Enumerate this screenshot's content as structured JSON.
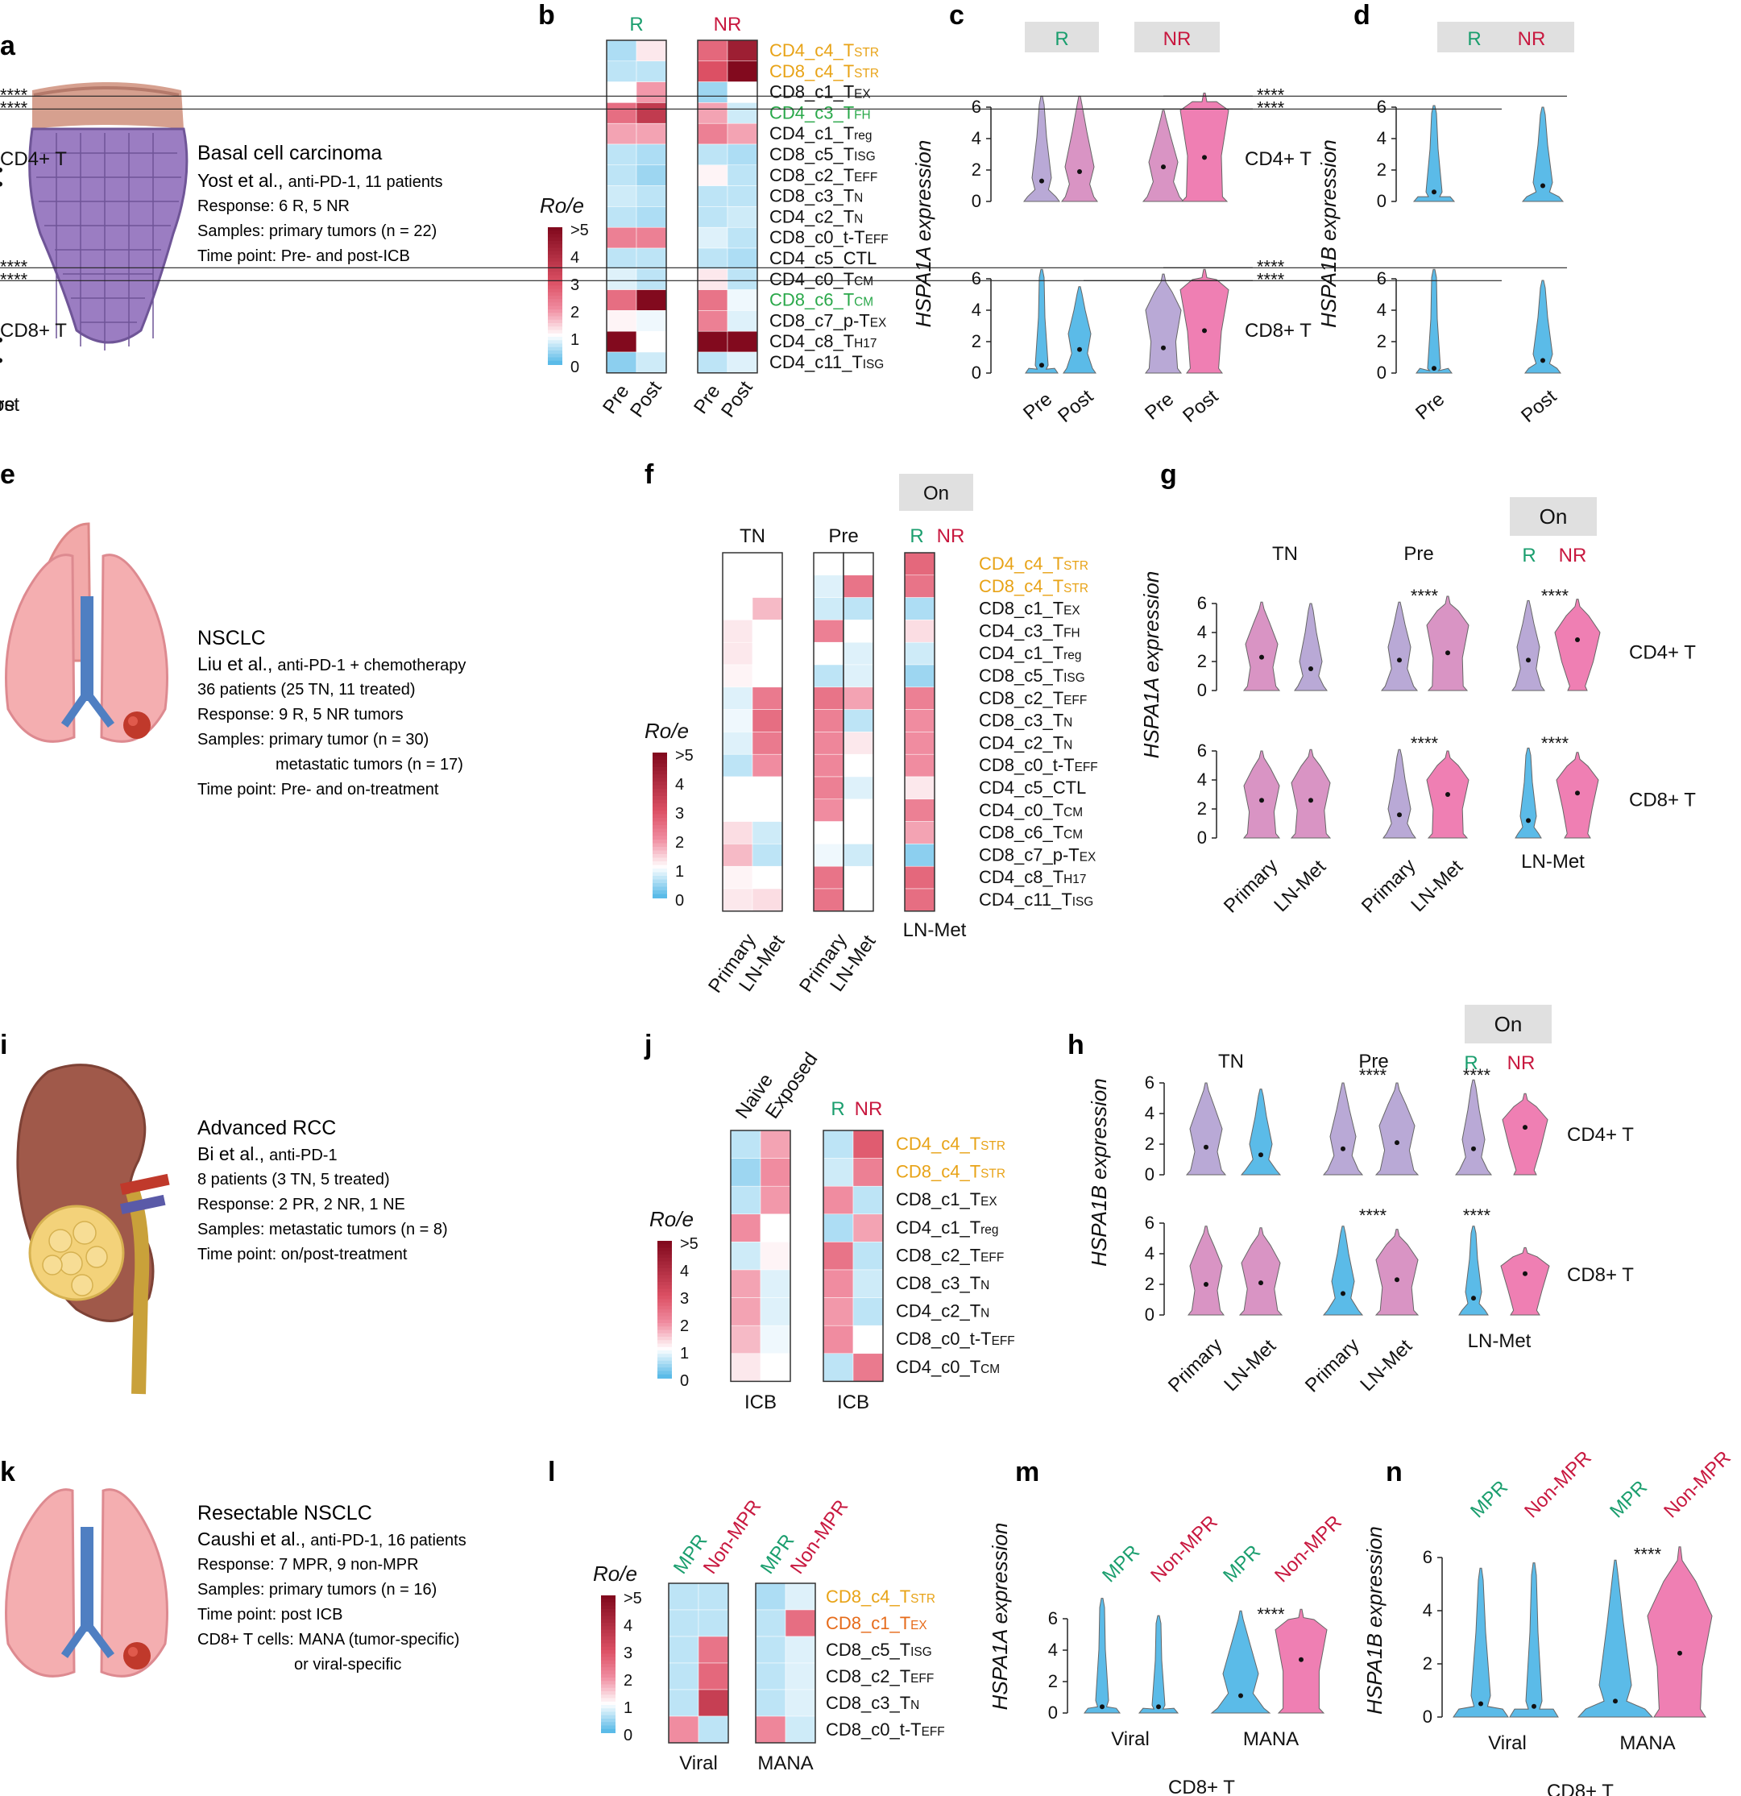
{
  "colors": {
    "r_green": "#1a9e6e",
    "nr_red": "#c8183f",
    "tstr_orange": "#e8a317",
    "tex_orange": "#e66b1a",
    "tfh_green": "#2aa84a",
    "violin_purple": "#b9a9d6",
    "violin_blue": "#5bbbe8",
    "violin_pink": "#ef7fb3",
    "violin_mauve": "#d994c4",
    "box_grey": "#e0e0e0"
  },
  "panels": {
    "a": {
      "letter": "a",
      "title": "Basal cell carcinoma",
      "study": "Yost et al.,",
      "study_detail": "anti-PD-1, 11 patients",
      "lines": [
        "Response: 6 R, 5 NR",
        "Samples: primary tumors (n = 22)",
        "Time point: Pre- and post-ICB"
      ]
    },
    "b": {
      "letter": "b",
      "groups": [
        "R",
        "NR"
      ],
      "x_labels": [
        "Pre",
        "Post",
        "Pre",
        "Post"
      ],
      "rows": [
        "CD4_c4_TSTR",
        "CD8_c4_TSTR",
        "CD8_c1_TEX",
        "CD4_c3_TFH",
        "CD4_c1_Treg",
        "CD8_c5_TISG",
        "CD8_c2_TEFF",
        "CD8_c3_TN",
        "CD4_c2_TN",
        "CD8_c0_t-TEFF",
        "CD4_c5_CTL",
        "CD4_c0_TCM",
        "CD8_c6_TCM",
        "CD8_c7_p-TEX",
        "CD4_c8_TH17",
        "CD4_c11_TISG"
      ]
    },
    "c": {
      "letter": "c",
      "groups": [
        "R",
        "NR"
      ],
      "ylabel": "HSPA1A expression",
      "x_labels": [
        "Pre",
        "Post",
        "Pre",
        "Post"
      ],
      "rows": [
        "CD4+ T",
        "CD8+ T"
      ],
      "sig": "****",
      "ticks": [
        "0",
        "2",
        "4",
        "6"
      ]
    },
    "d": {
      "letter": "d",
      "groups": [
        "R",
        "NR"
      ],
      "ylabel": "HSPA1B expression",
      "x_labels": [
        "Pre",
        "Post",
        "Pre",
        "Post"
      ],
      "rows": [
        "CD4+ T",
        "CD8+ T"
      ],
      "sig": "****",
      "ticks": [
        "0",
        "2",
        "4",
        "6"
      ]
    },
    "e": {
      "letter": "e",
      "title": "NSCLC",
      "study": "Liu et al.,",
      "study_detail": "anti-PD-1 + chemotherapy",
      "lines": [
        "36 patients (25 TN, 11 treated)",
        "Response: 9 R, 5 NR tumors",
        "Samples: primary tumor (n = 30)",
        "metastatic tumors (n = 17)",
        "Time point: Pre- and on-treatment"
      ]
    },
    "f": {
      "letter": "f",
      "on": "On",
      "groups": [
        "TN",
        "Pre",
        "R",
        "NR"
      ],
      "x_labels": [
        "Primary",
        "LN-Met",
        "Primary",
        "LN-Met",
        "LN-Met"
      ],
      "rows": [
        "CD4_c4_TSTR",
        "CD8_c4_TSTR",
        "CD8_c1_TEX",
        "CD4_c3_TFH",
        "CD4_c1_Treg",
        "CD8_c5_TISG",
        "CD8_c2_TEFF",
        "CD8_c3_TN",
        "CD4_c2_TN",
        "CD8_c0_t-TEFF",
        "CD4_c5_CTL",
        "CD4_c0_TCM",
        "CD8_c6_TCM",
        "CD8_c7_p-TEX",
        "CD4_c8_TH17",
        "CD4_c11_TISG"
      ]
    },
    "g": {
      "letter": "g",
      "on": "On",
      "groups": [
        "TN",
        "Pre",
        "R",
        "NR"
      ],
      "ylabel": "HSPA1A expression",
      "x_labels": [
        "Primary",
        "LN-Met",
        "Primary",
        "LN-Met",
        "LN-Met"
      ],
      "rows": [
        "CD4+ T",
        "CD8+ T"
      ],
      "sig": "****",
      "ticks": [
        "0",
        "2",
        "4",
        "6"
      ]
    },
    "h": {
      "letter": "h",
      "on": "On",
      "groups": [
        "TN",
        "Pre",
        "R",
        "NR"
      ],
      "ylabel": "HSPA1B expression",
      "x_labels": [
        "Primary",
        "LN-Met",
        "Primary",
        "LN-Met",
        "LN-Met"
      ],
      "rows": [
        "CD4+ T",
        "CD8+ T"
      ],
      "sig": "****",
      "ticks": [
        "0",
        "2",
        "4",
        "6"
      ]
    },
    "i": {
      "letter": "i",
      "title": "Advanced RCC",
      "study": "Bi et al.,",
      "study_detail": "anti-PD-1",
      "lines": [
        "8 patients (3 TN, 5 treated)",
        "Response: 2 PR, 2 NR, 1 NE",
        "Samples: metastatic tumors (n = 8)",
        "Time point: on/post-treatment"
      ]
    },
    "j": {
      "letter": "j",
      "groups": [
        "Naive",
        "Exposed",
        "R",
        "NR"
      ],
      "x_labels": [
        "ICB",
        "ICB"
      ],
      "rows": [
        "CD4_c4_TSTR",
        "CD8_c4_TSTR",
        "CD8_c1_TEX",
        "CD4_c1_Treg",
        "CD8_c2_TEFF",
        "CD8_c3_TN",
        "CD4_c2_TN",
        "CD8_c0_t-TEFF",
        "CD4_c0_TCM"
      ]
    },
    "k": {
      "letter": "k",
      "title": "Resectable NSCLC",
      "study": "Caushi et al.,",
      "study_detail": "anti-PD-1, 16 patients",
      "lines": [
        "Response: 7 MPR, 9 non-MPR",
        "Samples: primary tumors (n = 16)",
        "Time point: post ICB",
        "CD8+ T cells: MANA (tumor-specific)",
        "or viral-specific"
      ]
    },
    "l": {
      "letter": "l",
      "groups": [
        "MPR",
        "Non-MPR",
        "MPR",
        "Non-MPR"
      ],
      "x_labels": [
        "Viral",
        "MANA"
      ],
      "rows": [
        "CD8_c4_TSTR",
        "CD8_c1_TEX",
        "CD8_c5_TISG",
        "CD8_c2_TEFF",
        "CD8_c3_TN",
        "CD8_c0_t-TEFF"
      ]
    },
    "m": {
      "letter": "m",
      "groups": [
        "MPR",
        "Non-MPR",
        "MPR",
        "Non-MPR"
      ],
      "ylabel": "HSPA1A expression",
      "x_labels": [
        "Viral",
        "MANA"
      ],
      "bottom": "CD8+ T",
      "sig": "****",
      "ticks": [
        "0",
        "2",
        "4",
        "6"
      ]
    },
    "n": {
      "letter": "n",
      "groups": [
        "MPR",
        "Non-MPR",
        "MPR",
        "Non-MPR"
      ],
      "ylabel": "HSPA1B expression",
      "x_labels": [
        "Viral",
        "MANA"
      ],
      "bottom": "CD8+ T",
      "sig": "****",
      "ticks": [
        "0",
        "2",
        "4",
        "6"
      ]
    }
  },
  "legend": {
    "title": "Ro/e",
    "labels": [
      ">5",
      "4",
      "3",
      "2",
      "1",
      "0"
    ]
  },
  "heatmaps": {
    "b": [
      [
        0.5,
        1.2,
        2.6,
        4.4
      ],
      [
        0.6,
        0.6,
        3.0,
        5
      ],
      [
        1.0,
        1.9,
        0.4,
        1.0
      ],
      [
        2.5,
        3.6,
        1.8,
        0.7
      ],
      [
        1.8,
        1.8,
        2.2,
        1.8
      ],
      [
        0.6,
        0.5,
        0.6,
        0.5
      ],
      [
        0.6,
        0.4,
        1.1,
        0.6
      ],
      [
        0.7,
        0.6,
        0.6,
        0.6
      ],
      [
        0.6,
        0.5,
        0.6,
        0.7
      ],
      [
        2.2,
        2.2,
        0.8,
        0.6
      ],
      [
        0.6,
        0.6,
        0.6,
        0.5
      ],
      [
        0.8,
        0.6,
        1.2,
        0.6
      ],
      [
        2.5,
        5,
        2.4,
        0.9
      ],
      [
        1.1,
        0.9,
        2.2,
        0.8
      ],
      [
        5,
        1.0,
        5,
        5
      ],
      [
        0.3,
        0.7,
        0.6,
        0.8
      ]
    ],
    "f": [
      [
        1.0,
        1.0,
        1.0,
        1.0,
        2.6
      ],
      [
        1.0,
        1.0,
        0.8,
        2.4,
        2.4
      ],
      [
        1.0,
        1.6,
        0.7,
        0.6,
        0.5
      ],
      [
        1.2,
        1.0,
        2.2,
        1.0,
        1.3
      ],
      [
        1.2,
        1.0,
        1.0,
        0.8,
        0.7
      ],
      [
        1.1,
        1.0,
        0.6,
        0.8,
        0.4
      ],
      [
        0.8,
        2.3,
        2.4,
        1.8,
        2.2
      ],
      [
        0.9,
        2.5,
        2.2,
        0.6,
        2.0
      ],
      [
        0.8,
        2.3,
        2.1,
        1.2,
        2.0
      ],
      [
        0.6,
        2.0,
        2.1,
        1.0,
        2.0
      ],
      [
        1.0,
        1.0,
        2.2,
        0.8,
        1.2
      ],
      [
        1.0,
        1.0,
        2.0,
        1.0,
        2.2
      ],
      [
        1.3,
        0.7,
        1.0,
        1.0,
        1.8
      ],
      [
        1.6,
        0.6,
        0.9,
        0.7,
        0.3
      ],
      [
        1.1,
        1.0,
        2.4,
        1.0,
        2.6
      ],
      [
        1.2,
        1.3,
        2.4,
        1.0,
        2.5
      ]
    ],
    "j": [
      [
        0.6,
        1.8,
        0.6,
        2.8
      ],
      [
        0.4,
        2.0,
        0.7,
        2.2
      ],
      [
        0.6,
        1.9,
        2.0,
        0.6
      ],
      [
        2.0,
        1.0,
        0.5,
        1.8
      ],
      [
        0.7,
        1.1,
        2.4,
        0.6
      ],
      [
        1.8,
        0.8,
        2.0,
        0.7
      ],
      [
        1.8,
        0.8,
        1.9,
        0.6
      ],
      [
        1.6,
        0.9,
        2.0,
        1.0
      ],
      [
        1.2,
        1.0,
        0.6,
        2.3
      ]
    ],
    "l": [
      [
        0.6,
        0.6,
        0.5,
        0.8
      ],
      [
        0.6,
        0.6,
        0.6,
        2.5
      ],
      [
        0.6,
        2.4,
        0.6,
        0.8
      ],
      [
        0.6,
        2.6,
        0.6,
        0.8
      ],
      [
        0.6,
        3.5,
        0.6,
        0.8
      ],
      [
        2.0,
        0.6,
        2.1,
        0.7
      ]
    ]
  }
}
